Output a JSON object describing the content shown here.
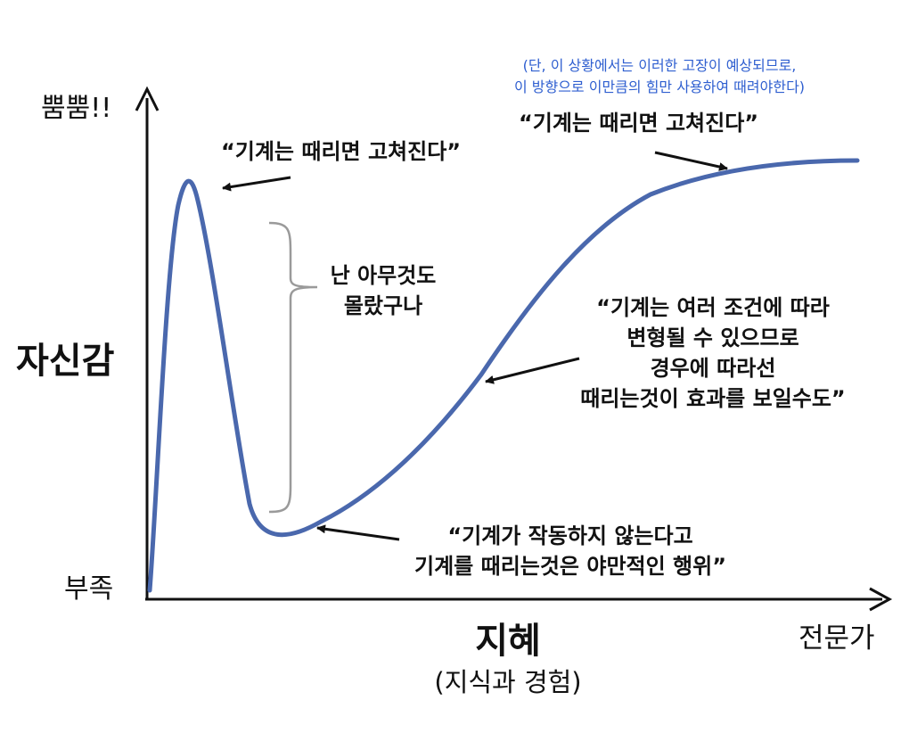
{
  "y_axis": {
    "top_label": "뿜뿜!!",
    "title": "자신감",
    "bottom_label": "부족"
  },
  "x_axis": {
    "title": "지혜",
    "subtitle": "(지식과 경험)",
    "right_label": "전문가"
  },
  "note": {
    "line1": "(단, 이 상황에서는 이러한 고장이 예상되므로,",
    "line2": "이 방향으로 이만큼의 힘만 사용하여 때려야한다)"
  },
  "annotations": {
    "peak": "“기계는 때리면 고쳐진다”",
    "plateau": "“기계는 때리면 고쳐진다”",
    "bracket_line1": "난 아무것도",
    "bracket_line2": "몰랐구나",
    "slope_line1": "“기계는 여러 조건에 따라",
    "slope_line2": "변형될 수 있으므로",
    "slope_line3": "경우에 따라선",
    "slope_line4": "때리는것이 효과를 보일수도”",
    "valley_line1": "“기계가 작동하지 않는다고",
    "valley_line2": "기계를 때리는것은 야만적인 행위”"
  },
  "colors": {
    "curve": "#4a68ad",
    "bracket": "#9a9a9a",
    "note": "#2f5fd0",
    "axis": "#111111"
  }
}
